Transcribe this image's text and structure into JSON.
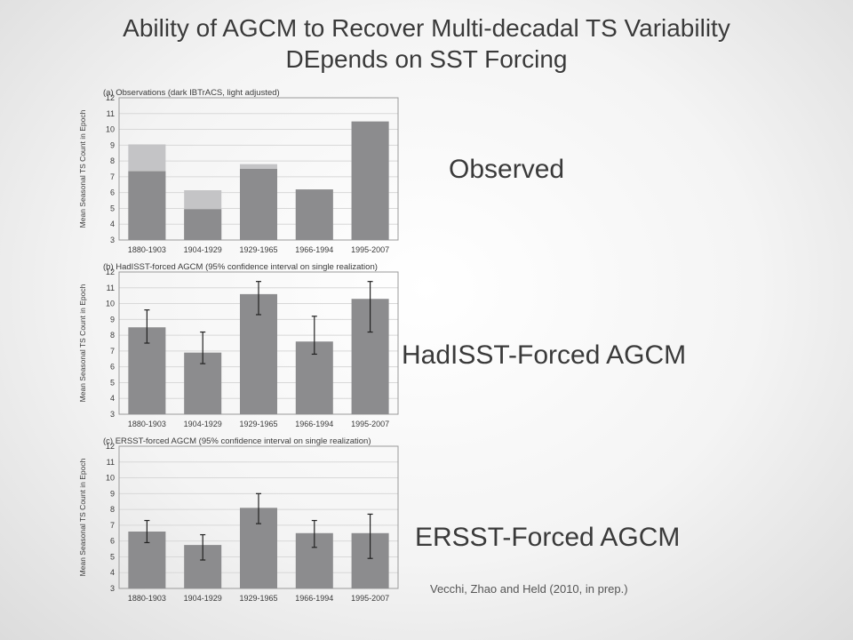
{
  "slide": {
    "title_line1": "Ability of AGCM to Recover Multi-decadal TS Variability",
    "title_line2": "DEpends on SST Forcing",
    "label_observed": "Observed",
    "label_hadisst": "HadISST-Forced AGCM",
    "label_ersst": "ERSST-Forced AGCM",
    "citation": "Vecchi, Zhao and Held (2010, in prep.)"
  },
  "colors": {
    "bar_dark": "#8c8c8e",
    "bar_light": "#c4c4c6",
    "grid": "#d8d8d8",
    "text": "#3a3a3a"
  },
  "chart_data": [
    {
      "type": "bar",
      "title": "(a) Observations (dark IBTrACS, light adjusted)",
      "ylabel": "Mean Seasonal TS Count in Epoch",
      "categories": [
        "1880-1903",
        "1904-1929",
        "1929-1965",
        "1966-1994",
        "1995-2007"
      ],
      "ylim": [
        3,
        12
      ],
      "yticks": [
        "3",
        "4",
        "5",
        "6",
        "7",
        "8",
        "9",
        "10",
        "11",
        "12"
      ],
      "grid": true,
      "series": [
        {
          "name": "IBTrACS",
          "values": [
            7.35,
            4.95,
            7.5,
            6.2,
            10.5
          ]
        },
        {
          "name": "adjusted",
          "values": [
            9.05,
            6.15,
            7.8,
            6.2,
            10.5
          ]
        }
      ]
    },
    {
      "type": "bar",
      "title": "(b) HadISST-forced AGCM (95% confidence interval on single realization)",
      "ylabel": "Mean Seasonal TS Count in Epoch",
      "categories": [
        "1880-1903",
        "1904-1929",
        "1929-1965",
        "1966-1994",
        "1995-2007"
      ],
      "ylim": [
        3,
        12
      ],
      "yticks": [
        "3",
        "4",
        "5",
        "6",
        "7",
        "8",
        "9",
        "10",
        "11",
        "12"
      ],
      "grid": true,
      "values": [
        8.5,
        6.9,
        10.6,
        7.6,
        10.3
      ],
      "error_low": [
        7.5,
        6.2,
        9.3,
        6.8,
        8.2
      ],
      "error_high": [
        9.6,
        8.2,
        11.4,
        9.2,
        11.4
      ]
    },
    {
      "type": "bar",
      "title": "(c) ERSST-forced AGCM (95% confidence interval on single realization)",
      "ylabel": "Mean Seasonal TS Count in Epoch",
      "categories": [
        "1880-1903",
        "1904-1929",
        "1929-1965",
        "1966-1994",
        "1995-2007"
      ],
      "ylim": [
        3,
        12
      ],
      "yticks": [
        "3",
        "4",
        "5",
        "6",
        "7",
        "8",
        "9",
        "10",
        "11",
        "12"
      ],
      "grid": true,
      "values": [
        6.6,
        5.75,
        8.1,
        6.5,
        6.5
      ],
      "error_low": [
        5.9,
        4.8,
        7.1,
        5.6,
        4.9
      ],
      "error_high": [
        7.3,
        6.4,
        9.0,
        7.3,
        7.7
      ]
    }
  ]
}
